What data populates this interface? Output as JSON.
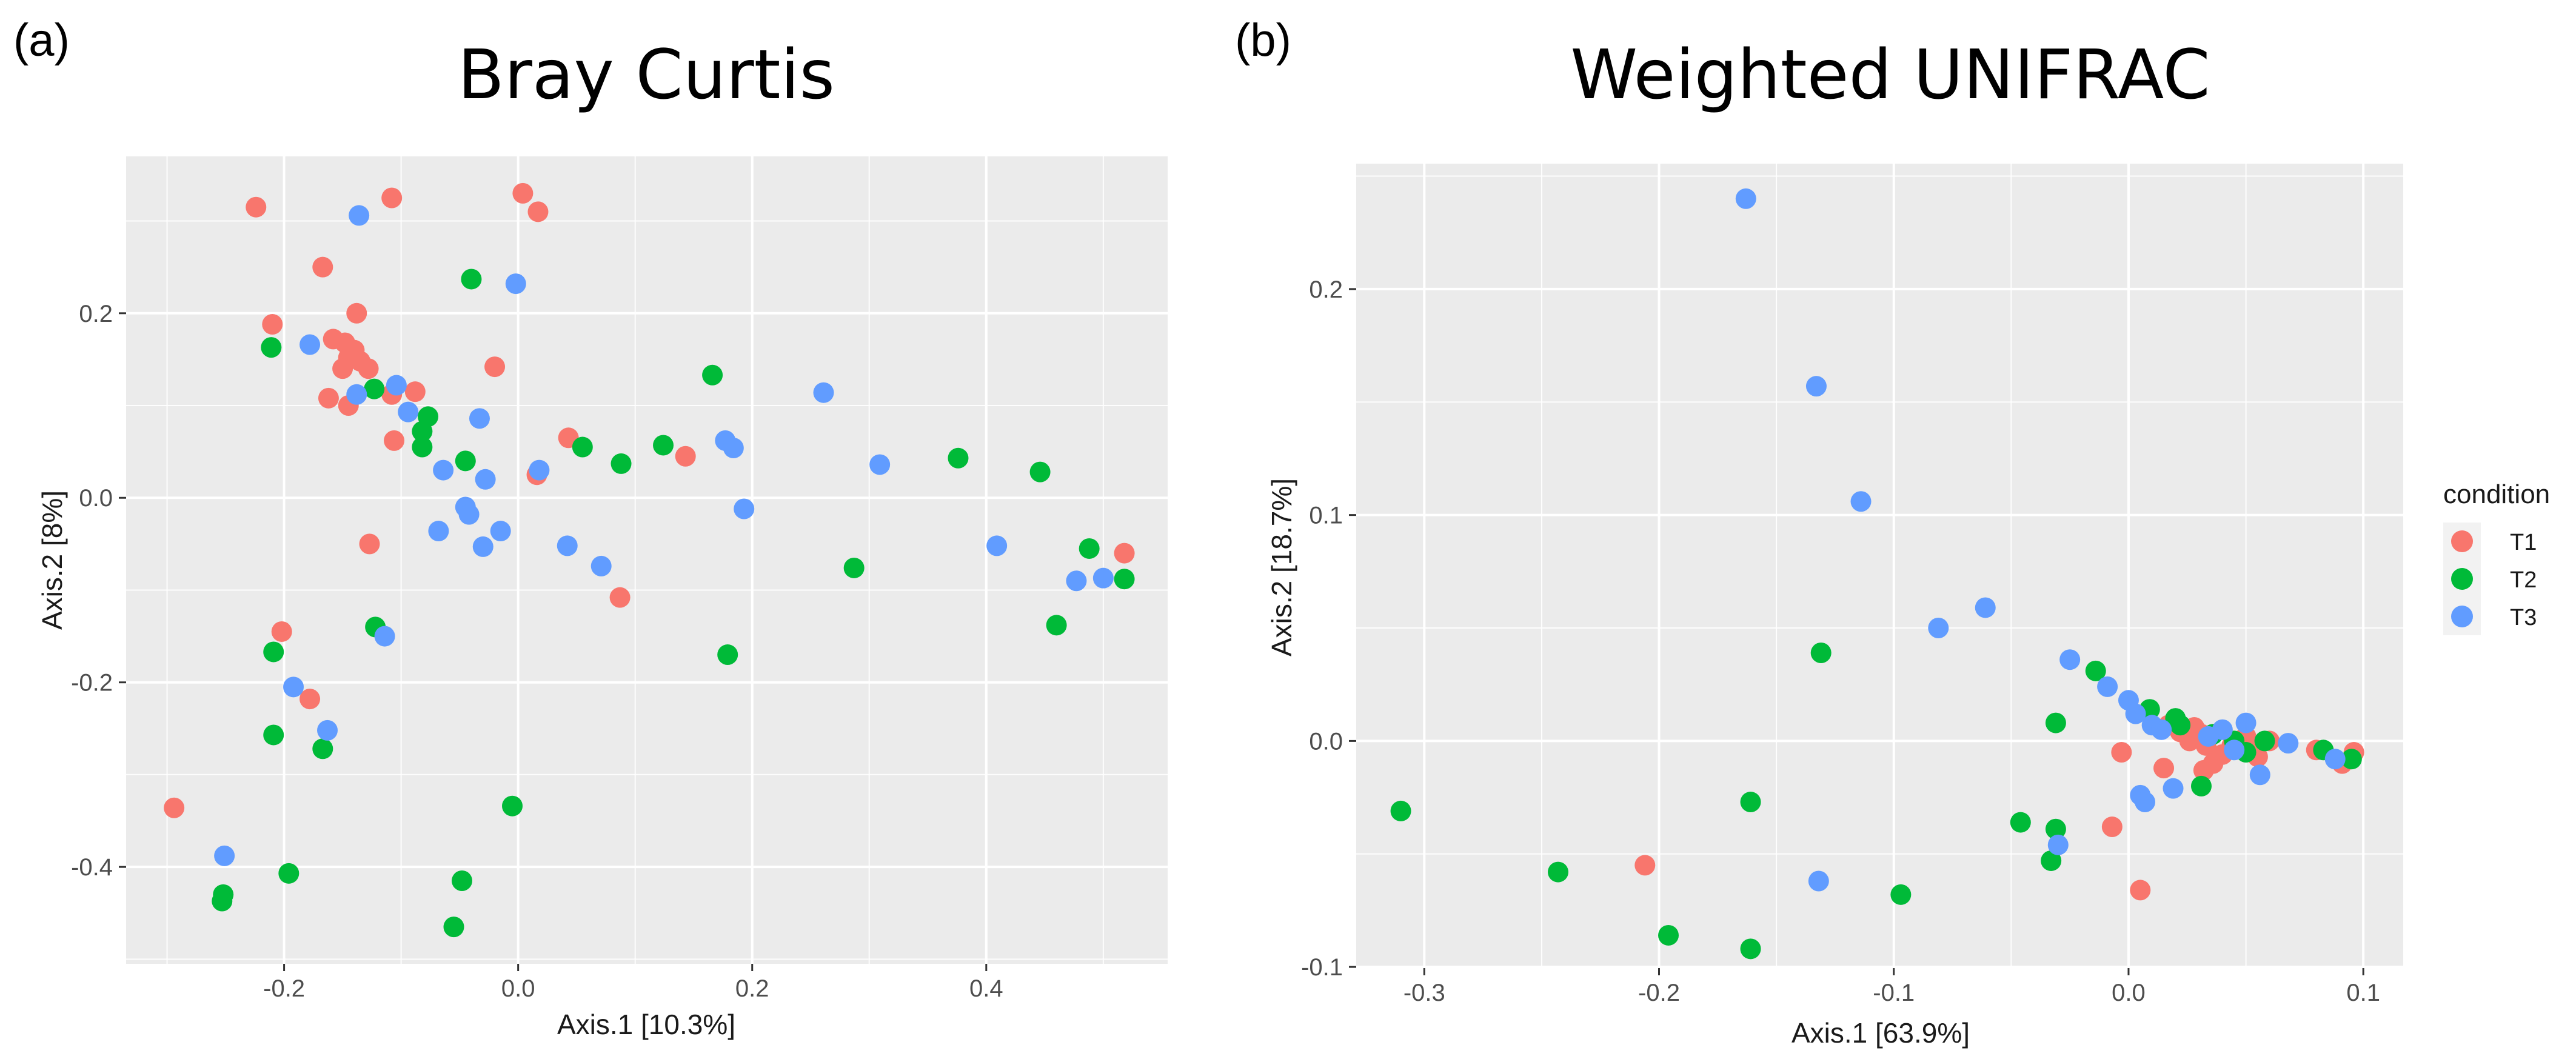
{
  "colors": {
    "T1": "#F8766D",
    "T2": "#00BA38",
    "T3": "#619CFF",
    "panel_bg": "#EBEBEB",
    "grid": "#FFFFFF"
  },
  "legend": {
    "title": "condition",
    "items": [
      {
        "label": "T1",
        "color": "#F8766D"
      },
      {
        "label": "T2",
        "color": "#00BA38"
      },
      {
        "label": "T3",
        "color": "#619CFF"
      }
    ]
  },
  "chart_data": [
    {
      "panel_label": "(a)",
      "type": "scatter",
      "title": "Bray Curtis",
      "xlabel": "Axis.1   [10.3%]",
      "ylabel": "Axis.2   [8%]",
      "xlim": [
        -0.335,
        0.555
      ],
      "ylim": [
        -0.505,
        0.37
      ],
      "xticks": [
        -0.2,
        0.0,
        0.2,
        0.4
      ],
      "xtick_labels": [
        "-0.2",
        "0.0",
        "0.2",
        "0.4"
      ],
      "yticks": [
        -0.4,
        -0.2,
        0.0,
        0.2
      ],
      "ytick_labels": [
        "-0.4",
        "-0.2",
        "0.0",
        "0.2"
      ],
      "series": [
        {
          "name": "T1",
          "points": [
            [
              -0.224,
              0.315
            ],
            [
              -0.21,
              0.188
            ],
            [
              -0.167,
              0.25
            ],
            [
              -0.138,
              0.2
            ],
            [
              -0.108,
              0.325
            ],
            [
              0.004,
              0.33
            ],
            [
              0.017,
              0.31
            ],
            [
              -0.158,
              0.172
            ],
            [
              -0.148,
              0.168
            ],
            [
              -0.145,
              0.152
            ],
            [
              -0.14,
              0.16
            ],
            [
              -0.135,
              0.148
            ],
            [
              -0.128,
              0.14
            ],
            [
              -0.15,
              0.14
            ],
            [
              -0.162,
              0.108
            ],
            [
              -0.145,
              0.1
            ],
            [
              -0.108,
              0.112
            ],
            [
              -0.088,
              0.115
            ],
            [
              -0.106,
              0.062
            ],
            [
              -0.02,
              0.142
            ],
            [
              0.043,
              0.065
            ],
            [
              0.016,
              0.025
            ],
            [
              0.143,
              0.045
            ],
            [
              -0.127,
              -0.05
            ],
            [
              0.087,
              -0.108
            ],
            [
              0.518,
              -0.06
            ],
            [
              -0.202,
              -0.145
            ],
            [
              -0.178,
              -0.218
            ],
            [
              -0.294,
              -0.336
            ]
          ]
        },
        {
          "name": "T2",
          "points": [
            [
              -0.211,
              0.163
            ],
            [
              -0.04,
              0.237
            ],
            [
              -0.123,
              0.118
            ],
            [
              -0.077,
              0.088
            ],
            [
              -0.082,
              0.072
            ],
            [
              -0.082,
              0.055
            ],
            [
              -0.045,
              0.04
            ],
            [
              0.055,
              0.055
            ],
            [
              0.088,
              0.037
            ],
            [
              0.124,
              0.057
            ],
            [
              0.166,
              0.133
            ],
            [
              0.376,
              0.043
            ],
            [
              0.446,
              0.028
            ],
            [
              0.488,
              -0.055
            ],
            [
              0.518,
              -0.088
            ],
            [
              0.46,
              -0.138
            ],
            [
              0.287,
              -0.076
            ],
            [
              0.179,
              -0.17
            ],
            [
              -0.122,
              -0.14
            ],
            [
              -0.209,
              -0.167
            ],
            [
              -0.209,
              -0.257
            ],
            [
              -0.167,
              -0.272
            ],
            [
              -0.196,
              -0.407
            ],
            [
              -0.252,
              -0.43
            ],
            [
              -0.253,
              -0.437
            ],
            [
              -0.005,
              -0.334
            ],
            [
              -0.048,
              -0.415
            ],
            [
              -0.055,
              -0.465
            ]
          ]
        },
        {
          "name": "T3",
          "points": [
            [
              -0.136,
              0.306
            ],
            [
              -0.002,
              0.232
            ],
            [
              -0.178,
              0.166
            ],
            [
              -0.104,
              0.122
            ],
            [
              -0.138,
              0.112
            ],
            [
              -0.094,
              0.093
            ],
            [
              -0.033,
              0.086
            ],
            [
              -0.064,
              0.03
            ],
            [
              -0.028,
              0.02
            ],
            [
              0.018,
              0.03
            ],
            [
              -0.045,
              -0.01
            ],
            [
              -0.042,
              -0.018
            ],
            [
              -0.068,
              -0.036
            ],
            [
              -0.015,
              -0.036
            ],
            [
              -0.03,
              -0.053
            ],
            [
              0.042,
              -0.052
            ],
            [
              0.071,
              -0.074
            ],
            [
              0.177,
              0.062
            ],
            [
              0.184,
              0.054
            ],
            [
              0.193,
              -0.012
            ],
            [
              0.261,
              0.114
            ],
            [
              0.309,
              0.036
            ],
            [
              0.409,
              -0.052
            ],
            [
              0.477,
              -0.09
            ],
            [
              0.5,
              -0.087
            ],
            [
              -0.114,
              -0.15
            ],
            [
              -0.192,
              -0.205
            ],
            [
              -0.163,
              -0.252
            ],
            [
              -0.251,
              -0.388
            ]
          ]
        }
      ]
    },
    {
      "panel_label": "(b)",
      "type": "scatter",
      "title": "Weighted UNIFRAC",
      "xlabel": "Axis.1   [63.9%]",
      "ylabel": "Axis.2   [18.7%]",
      "xlim": [
        -0.329,
        0.117
      ],
      "ylim": [
        -0.1005,
        0.2555
      ],
      "xticks": [
        -0.3,
        -0.2,
        -0.1,
        0.0,
        0.1
      ],
      "xtick_labels": [
        "-0.3",
        "-0.2",
        "-0.1",
        "0.0",
        "0.1"
      ],
      "yticks": [
        -0.1,
        0.0,
        0.1,
        0.2
      ],
      "ytick_labels": [
        "-0.1",
        "0.0",
        "0.1",
        "0.2"
      ],
      "series": [
        {
          "name": "T1",
          "points": [
            [
              -0.206,
              -0.055
            ],
            [
              -0.007,
              -0.038
            ],
            [
              0.005,
              -0.066
            ],
            [
              -0.003,
              -0.005
            ],
            [
              0.015,
              -0.012
            ],
            [
              0.017,
              0.007
            ],
            [
              0.022,
              0.004
            ],
            [
              0.026,
              0.0
            ],
            [
              0.028,
              0.006
            ],
            [
              0.031,
              0.003
            ],
            [
              0.033,
              -0.002
            ],
            [
              0.032,
              -0.013
            ],
            [
              0.036,
              -0.01
            ],
            [
              0.04,
              -0.006
            ],
            [
              0.044,
              -0.002
            ],
            [
              0.05,
              0.002
            ],
            [
              0.052,
              -0.004
            ],
            [
              0.055,
              -0.007
            ],
            [
              0.06,
              0.0
            ],
            [
              0.08,
              -0.004
            ],
            [
              0.091,
              -0.01
            ],
            [
              0.096,
              -0.005
            ]
          ]
        },
        {
          "name": "T2",
          "points": [
            [
              -0.31,
              -0.031
            ],
            [
              -0.243,
              -0.058
            ],
            [
              -0.196,
              -0.086
            ],
            [
              -0.161,
              -0.027
            ],
            [
              -0.161,
              -0.092
            ],
            [
              -0.131,
              0.039
            ],
            [
              -0.097,
              -0.068
            ],
            [
              -0.046,
              -0.036
            ],
            [
              -0.033,
              -0.053
            ],
            [
              -0.031,
              -0.039
            ],
            [
              -0.031,
              0.008
            ],
            [
              -0.014,
              0.031
            ],
            [
              0.009,
              0.014
            ],
            [
              0.02,
              0.01
            ],
            [
              0.022,
              0.007
            ],
            [
              0.031,
              -0.02
            ],
            [
              0.036,
              0.003
            ],
            [
              0.045,
              0.0
            ],
            [
              0.05,
              -0.005
            ],
            [
              0.058,
              0.0
            ],
            [
              0.083,
              -0.004
            ],
            [
              0.095,
              -0.008
            ]
          ]
        },
        {
          "name": "T3",
          "points": [
            [
              -0.163,
              0.24
            ],
            [
              -0.133,
              0.157
            ],
            [
              -0.114,
              0.106
            ],
            [
              -0.081,
              0.05
            ],
            [
              -0.061,
              0.059
            ],
            [
              -0.025,
              0.036
            ],
            [
              -0.009,
              0.024
            ],
            [
              0.0,
              0.018
            ],
            [
              0.003,
              0.012
            ],
            [
              0.01,
              0.007
            ],
            [
              0.014,
              0.005
            ],
            [
              0.04,
              0.005
            ],
            [
              0.05,
              0.008
            ],
            [
              0.034,
              0.002
            ],
            [
              0.045,
              -0.004
            ],
            [
              0.056,
              -0.015
            ],
            [
              0.068,
              -0.001
            ],
            [
              0.088,
              -0.008
            ],
            [
              0.019,
              -0.021
            ],
            [
              0.005,
              -0.024
            ],
            [
              0.007,
              -0.027
            ],
            [
              -0.03,
              -0.046
            ],
            [
              -0.132,
              -0.062
            ]
          ]
        }
      ]
    }
  ]
}
